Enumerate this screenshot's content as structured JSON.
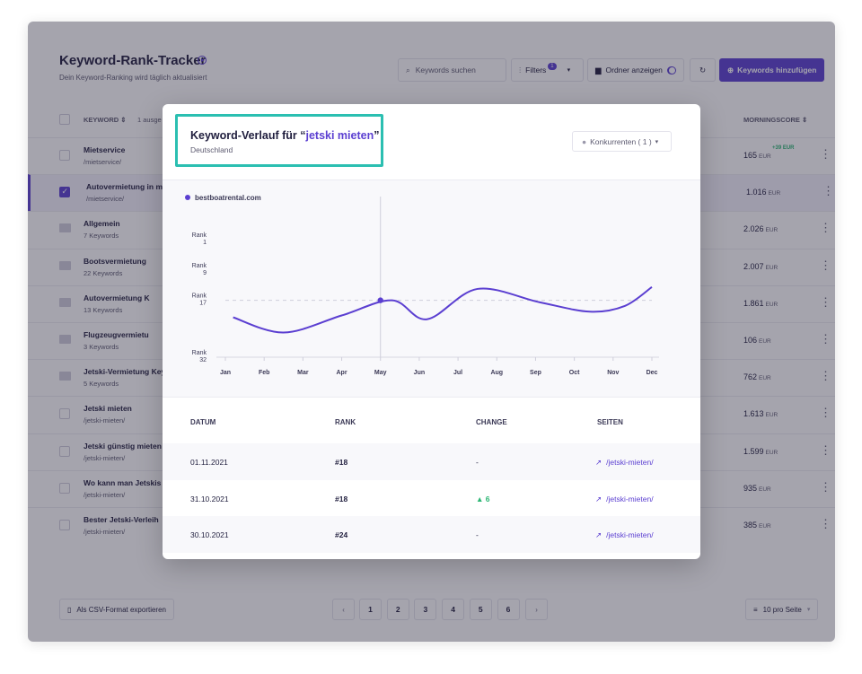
{
  "app": {
    "title": "Keyword-Rank-Tracker",
    "subtitle": "Dein Keyword-Ranking wird täglich aktualisiert",
    "search_placeholder": "Keywords suchen",
    "filters_label": "Filters",
    "filters_count": "1",
    "folder_toggle_label": "Ordner anzeigen",
    "add_button_label": "Keywords hinzufügen",
    "columns": {
      "keyword": "KEYWORD ⇕",
      "selected": "1 ausge",
      "score": "MORNINGSCORE ⇕"
    },
    "currency": "EUR",
    "rows": [
      {
        "name": "Mietservice",
        "sub": "/mietservice/",
        "score": "165",
        "delta": "+39 EUR",
        "kind": "kw",
        "checked": false
      },
      {
        "name": "Autovermietung in mei",
        "sub": "/mietservice/",
        "score": "1.016",
        "delta": "",
        "kind": "kw",
        "checked": true
      },
      {
        "name": "Allgemein",
        "sub": "7 Keywords",
        "score": "2.026",
        "delta": "",
        "kind": "folder",
        "checked": false
      },
      {
        "name": "Bootsvermietung",
        "sub": "22 Keywords",
        "score": "2.007",
        "delta": "",
        "kind": "folder",
        "checked": false
      },
      {
        "name": "Autovermietung K",
        "sub": "13 Keywords",
        "score": "1.861",
        "delta": "",
        "kind": "folder",
        "checked": false
      },
      {
        "name": "Flugzeugvermietu",
        "sub": "3 Keywords",
        "score": "106",
        "delta": "",
        "kind": "folder",
        "checked": false
      },
      {
        "name": "Jetski-Vermietung Key",
        "sub": "5 Keywords",
        "score": "762",
        "delta": "",
        "kind": "folder",
        "checked": false
      },
      {
        "name": "Jetski mieten",
        "sub": "/jetski-mieten/",
        "score": "1.613",
        "delta": "",
        "kind": "kw",
        "checked": false
      },
      {
        "name": "Jetski günstig mieten",
        "sub": "/jetski-mieten/",
        "score": "1.599",
        "delta": "",
        "kind": "kw",
        "checked": false
      },
      {
        "name": "Wo kann man Jetskis r",
        "sub": "/jetski-mieten/",
        "score": "935",
        "delta": "",
        "kind": "kw",
        "checked": false
      },
      {
        "name": "Bester Jetski-Verleih",
        "sub": "/jetski-mieten/",
        "score": "385",
        "delta": "",
        "kind": "kw",
        "checked": false
      }
    ],
    "export_label": "Als CSV-Format exportieren",
    "pages": [
      "1",
      "2",
      "3",
      "4",
      "5",
      "6"
    ],
    "prev": "‹",
    "next": "›",
    "per_page_label": "10 pro Seite"
  },
  "modal": {
    "title_prefix": "Keyword-Verlauf für “",
    "keyword": "jetski mieten",
    "title_suffix": "”",
    "country": "Deutschland",
    "competitors_label": "Konkurrenten ( 1 )",
    "table": {
      "headers": [
        "DATUM",
        "RANK",
        "CHANGE",
        "SEITEN"
      ],
      "rows": [
        {
          "date": "01.11.2021",
          "rank": "#18",
          "change": "-",
          "page": "/jetski-mieten/"
        },
        {
          "date": "31.10.2021",
          "rank": "#18",
          "change": "▲ 6",
          "page": "/jetski-mieten/"
        },
        {
          "date": "30.10.2021",
          "rank": "#24",
          "change": "-",
          "page": "/jetski-mieten/"
        }
      ]
    }
  },
  "chart_data": {
    "type": "line",
    "legend": "bestboatrental.com",
    "series_color": "#5b3fd1",
    "categories": [
      "Jan",
      "Feb",
      "Mar",
      "Apr",
      "May",
      "Jun",
      "Jul",
      "Aug",
      "Sep",
      "Oct",
      "Nov",
      "Dec"
    ],
    "x": [
      0.2,
      1.5,
      3.0,
      4.3,
      5.2,
      6.5,
      8.1,
      9.4,
      10.3,
      11.0
    ],
    "values": [
      21.5,
      25.5,
      21.0,
      17.0,
      22.0,
      14.0,
      17.5,
      20.0,
      18.5,
      13.5
    ],
    "y_ticks": [
      {
        "value": 1,
        "label": "Rank 1"
      },
      {
        "value": 9,
        "label": "Rank 9"
      },
      {
        "value": 17,
        "label": "Rank 17"
      },
      {
        "value": 32,
        "label": "Rank 32"
      }
    ],
    "marker": {
      "category": "May",
      "value": 17
    },
    "reference_line": 17,
    "y_inverted": true
  }
}
